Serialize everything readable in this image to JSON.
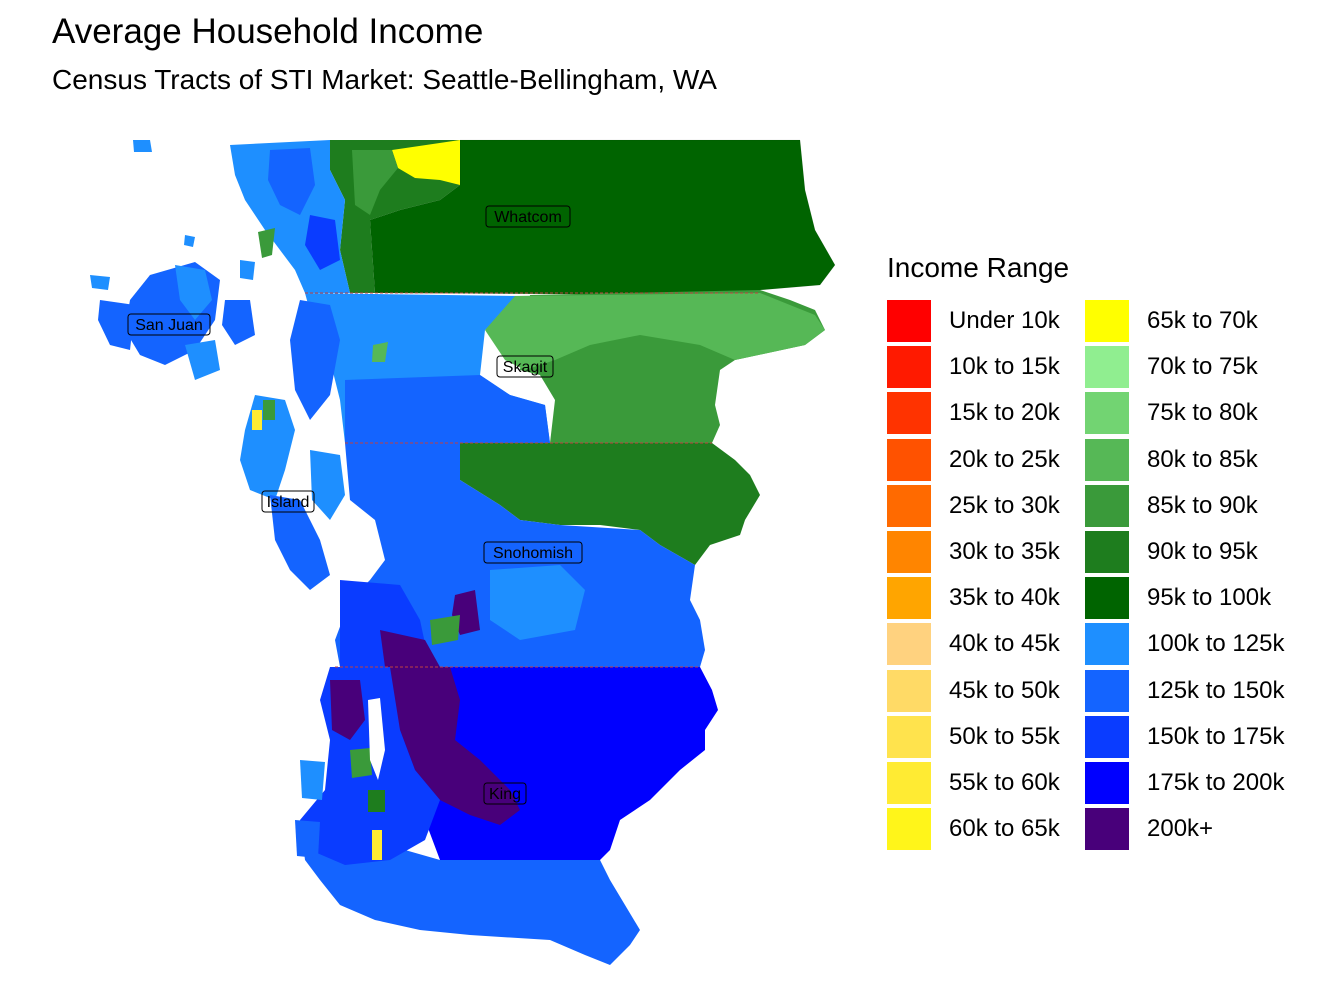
{
  "title": "Average Household Income",
  "subtitle": "Census Tracts of STI Market: Seattle-Bellingham, WA",
  "legend": {
    "title": "Income Range",
    "items": [
      {
        "label": "Under 10k",
        "color": "#FF0000"
      },
      {
        "label": "10k to 15k",
        "color": "#FF1A00"
      },
      {
        "label": "15k to 20k",
        "color": "#FF3300"
      },
      {
        "label": "20k to 25k",
        "color": "#FF5200"
      },
      {
        "label": "25k to 30k",
        "color": "#FF6A00"
      },
      {
        "label": "30k to 35k",
        "color": "#FF8500"
      },
      {
        "label": "35k to 40k",
        "color": "#FFA500"
      },
      {
        "label": "40k to 45k",
        "color": "#FFD27F"
      },
      {
        "label": "45k to 50k",
        "color": "#FFDA66"
      },
      {
        "label": "50k to 55k",
        "color": "#FFE34D"
      },
      {
        "label": "55k to 60k",
        "color": "#FFEB33"
      },
      {
        "label": "60k to 65k",
        "color": "#FFF51A"
      },
      {
        "label": "65k to 70k",
        "color": "#FFFF00"
      },
      {
        "label": "70k to 75k",
        "color": "#90EE90"
      },
      {
        "label": "75k to 80k",
        "color": "#72D472"
      },
      {
        "label": "80k to 85k",
        "color": "#56B856"
      },
      {
        "label": "85k to 90k",
        "color": "#3A9A3A"
      },
      {
        "label": "90k to 95k",
        "color": "#1E7D1E"
      },
      {
        "label": "95k to 100k",
        "color": "#006400"
      },
      {
        "label": "100k to 125k",
        "color": "#1E8FFF"
      },
      {
        "label": "125k to 150k",
        "color": "#1464FF"
      },
      {
        "label": "150k to 175k",
        "color": "#0A3CFF"
      },
      {
        "label": "175k to 200k",
        "color": "#0000FF"
      },
      {
        "label": "200k+",
        "color": "#48007A"
      }
    ]
  },
  "counties": [
    {
      "name": "Whatcom"
    },
    {
      "name": "San Juan"
    },
    {
      "name": "Skagit"
    },
    {
      "name": "Island"
    },
    {
      "name": "Snohomish"
    },
    {
      "name": "King"
    }
  ]
}
